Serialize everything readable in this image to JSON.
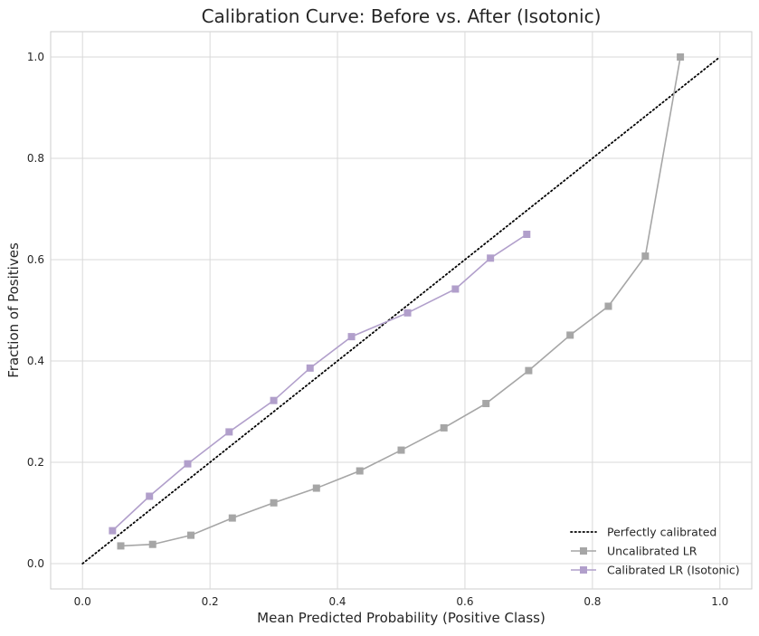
{
  "chart_data": {
    "type": "line",
    "title": "Calibration Curve: Before vs. After (Isotonic)",
    "xlabel": "Mean Predicted Probability (Positive Class)",
    "ylabel": "Fraction of Positives",
    "xlim": [
      -0.05,
      1.05
    ],
    "ylim": [
      -0.05,
      1.05
    ],
    "x_ticks": [
      "0.0",
      "0.2",
      "0.4",
      "0.6",
      "0.8",
      "1.0"
    ],
    "y_ticks": [
      "0.0",
      "0.2",
      "0.4",
      "0.6",
      "0.8",
      "1.0"
    ],
    "grid": true,
    "legend_position": "bottom-right",
    "series": [
      {
        "name": "Perfectly calibrated",
        "style": "dotted",
        "marker": "none",
        "color": "#000000",
        "x": [
          0.0,
          1.0
        ],
        "y": [
          0.0,
          1.0
        ]
      },
      {
        "name": "Uncalibrated LR",
        "style": "solid",
        "marker": "square",
        "color": "#a6a6a6",
        "x": [
          0.06,
          0.11,
          0.17,
          0.235,
          0.3,
          0.367,
          0.435,
          0.5,
          0.567,
          0.633,
          0.7,
          0.765,
          0.825,
          0.883,
          0.938
        ],
        "y": [
          0.035,
          0.038,
          0.056,
          0.09,
          0.12,
          0.149,
          0.183,
          0.224,
          0.268,
          0.316,
          0.381,
          0.451,
          0.508,
          0.607,
          1.0
        ]
      },
      {
        "name": "Calibrated LR (Isotonic)",
        "style": "solid",
        "marker": "square",
        "color": "#b19fcb",
        "x": [
          0.047,
          0.105,
          0.165,
          0.23,
          0.3,
          0.357,
          0.422,
          0.51,
          0.585,
          0.64,
          0.697
        ],
        "y": [
          0.065,
          0.133,
          0.197,
          0.26,
          0.322,
          0.386,
          0.448,
          0.495,
          0.542,
          0.603,
          0.65
        ]
      }
    ]
  }
}
